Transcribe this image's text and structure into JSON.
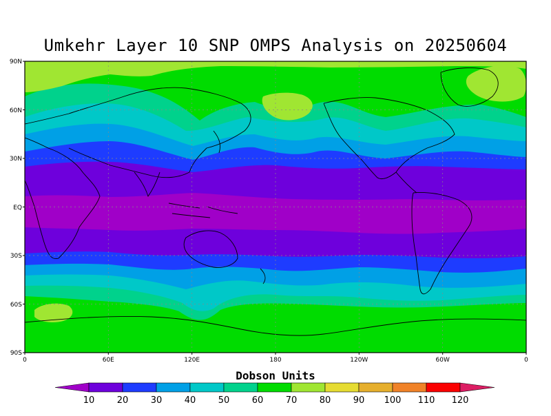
{
  "title": "Umkehr Layer 10 SNP OMPS Analysis on 20250604",
  "colorbar": {
    "title": "Dobson Units",
    "labels": [
      "10",
      "20",
      "30",
      "40",
      "50",
      "60",
      "70",
      "80",
      "90",
      "100",
      "110",
      "120"
    ],
    "colors": [
      "#a000c8",
      "#6e00dc",
      "#1e3cff",
      "#00a0e6",
      "#00c8c8",
      "#00d28c",
      "#00dc00",
      "#a0e632",
      "#e6dc32",
      "#e6af2d",
      "#f08228",
      "#fa0000",
      "#dc1e64"
    ]
  },
  "axes": {
    "y_ticks": [
      "90N",
      "60N",
      "30N",
      "EQ",
      "30S",
      "60S",
      "90S"
    ],
    "x_ticks": [
      "0",
      "60E",
      "120E",
      "180",
      "120W",
      "60W",
      "0"
    ]
  },
  "field": {
    "band_colors": {
      "polar_north": "#a0e632",
      "high_lat": "#00dc00",
      "mid_hi": "#00d28c",
      "mid": "#00c8c8",
      "mid_lo": "#00a0e6",
      "sub": "#1e3cff",
      "trop": "#6e00dc",
      "eq": "#a000c8"
    }
  }
}
